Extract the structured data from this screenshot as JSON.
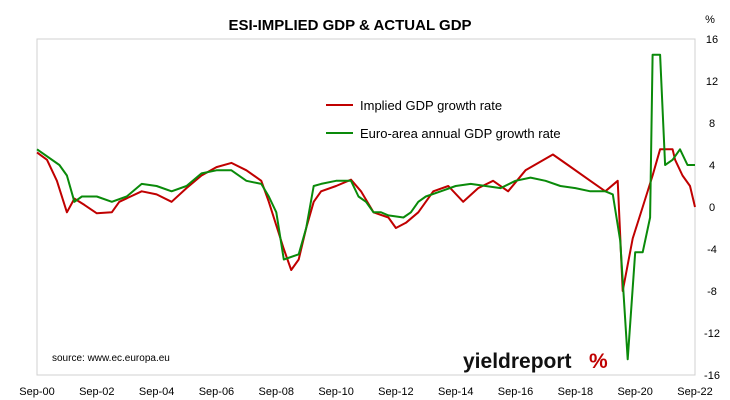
{
  "chart_data": {
    "type": "line",
    "title": "ESI-IMPLIED GDP & ACTUAL GDP",
    "y_unit": "%",
    "ylim": [
      -16,
      16
    ],
    "y_ticks": [
      16,
      12,
      8,
      4,
      0,
      -4,
      -8,
      -12,
      -16
    ],
    "x_ticks": [
      "Sep-00",
      "Sep-02",
      "Sep-04",
      "Sep-06",
      "Sep-08",
      "Sep-10",
      "Sep-12",
      "Sep-14",
      "Sep-16",
      "Sep-18",
      "Sep-20",
      "Sep-22"
    ],
    "xlim": [
      "2000-09",
      "2022-09"
    ],
    "grid": false,
    "legend_placement": "upper-center",
    "series": [
      {
        "name": "Implied GDP growth rate",
        "color": "#c00000",
        "points": [
          [
            "2000-09",
            5.2
          ],
          [
            "2001-01",
            4.5
          ],
          [
            "2001-05",
            2.5
          ],
          [
            "2001-09",
            -0.5
          ],
          [
            "2001-12",
            0.8
          ],
          [
            "2002-04",
            0.2
          ],
          [
            "2002-09",
            -0.6
          ],
          [
            "2003-03",
            -0.5
          ],
          [
            "2003-06",
            0.5
          ],
          [
            "2004-03",
            1.5
          ],
          [
            "2004-09",
            1.2
          ],
          [
            "2005-03",
            0.5
          ],
          [
            "2005-09",
            1.8
          ],
          [
            "2006-03",
            3.0
          ],
          [
            "2006-09",
            3.8
          ],
          [
            "2007-03",
            4.2
          ],
          [
            "2007-09",
            3.5
          ],
          [
            "2008-03",
            2.5
          ],
          [
            "2008-06",
            0.5
          ],
          [
            "2008-12",
            -4.0
          ],
          [
            "2009-03",
            -6.0
          ],
          [
            "2009-06",
            -5.0
          ],
          [
            "2009-09",
            -2.0
          ],
          [
            "2009-12",
            0.5
          ],
          [
            "2010-03",
            1.5
          ],
          [
            "2010-09",
            2.0
          ],
          [
            "2011-03",
            2.6
          ],
          [
            "2011-07",
            1.5
          ],
          [
            "2011-12",
            -0.5
          ],
          [
            "2012-06",
            -1.0
          ],
          [
            "2012-09",
            -2.0
          ],
          [
            "2013-01",
            -1.5
          ],
          [
            "2013-06",
            -0.5
          ],
          [
            "2013-12",
            1.5
          ],
          [
            "2014-06",
            2.0
          ],
          [
            "2014-12",
            0.5
          ],
          [
            "2015-06",
            1.8
          ],
          [
            "2015-12",
            2.5
          ],
          [
            "2016-06",
            1.5
          ],
          [
            "2017-01",
            3.5
          ],
          [
            "2017-12",
            5.0
          ],
          [
            "2018-06",
            4.0
          ],
          [
            "2019-03",
            2.5
          ],
          [
            "2019-09",
            1.5
          ],
          [
            "2020-02",
            2.5
          ],
          [
            "2020-04",
            -8.0
          ],
          [
            "2020-08",
            -3.0
          ],
          [
            "2020-12",
            0.0
          ],
          [
            "2021-04",
            3.0
          ],
          [
            "2021-07",
            5.5
          ],
          [
            "2021-12",
            5.5
          ],
          [
            "2022-01",
            4.5
          ],
          [
            "2022-04",
            3.0
          ],
          [
            "2022-07",
            2.0
          ],
          [
            "2022-09",
            0.0
          ]
        ]
      },
      {
        "name": "Euro-area annual GDP growth rate",
        "color": "#0a8a0a",
        "points": [
          [
            "2000-09",
            5.5
          ],
          [
            "2001-06",
            4.0
          ],
          [
            "2001-09",
            3.0
          ],
          [
            "2001-12",
            0.5
          ],
          [
            "2002-03",
            1.0
          ],
          [
            "2002-09",
            1.0
          ],
          [
            "2003-03",
            0.5
          ],
          [
            "2003-09",
            1.0
          ],
          [
            "2004-03",
            2.2
          ],
          [
            "2004-09",
            2.0
          ],
          [
            "2005-03",
            1.5
          ],
          [
            "2005-09",
            2.0
          ],
          [
            "2006-03",
            3.2
          ],
          [
            "2006-09",
            3.5
          ],
          [
            "2007-03",
            3.5
          ],
          [
            "2007-09",
            2.5
          ],
          [
            "2008-03",
            2.2
          ],
          [
            "2008-06",
            1.0
          ],
          [
            "2008-09",
            -0.5
          ],
          [
            "2008-12",
            -5.0
          ],
          [
            "2009-06",
            -4.5
          ],
          [
            "2009-09",
            -2.0
          ],
          [
            "2009-12",
            2.0
          ],
          [
            "2010-03",
            2.2
          ],
          [
            "2010-09",
            2.5
          ],
          [
            "2011-03",
            2.5
          ],
          [
            "2011-06",
            1.0
          ],
          [
            "2011-09",
            0.5
          ],
          [
            "2011-12",
            -0.5
          ],
          [
            "2012-03",
            -0.5
          ],
          [
            "2012-06",
            -0.8
          ],
          [
            "2012-12",
            -1.0
          ],
          [
            "2013-03",
            -0.5
          ],
          [
            "2013-06",
            0.5
          ],
          [
            "2013-09",
            1.0
          ],
          [
            "2014-03",
            1.5
          ],
          [
            "2014-09",
            2.0
          ],
          [
            "2015-03",
            2.2
          ],
          [
            "2015-09",
            2.0
          ],
          [
            "2016-03",
            1.8
          ],
          [
            "2016-09",
            2.5
          ],
          [
            "2017-03",
            2.8
          ],
          [
            "2017-09",
            2.5
          ],
          [
            "2018-03",
            2.0
          ],
          [
            "2018-09",
            1.8
          ],
          [
            "2019-03",
            1.5
          ],
          [
            "2019-09",
            1.5
          ],
          [
            "2019-12",
            1.2
          ],
          [
            "2020-03",
            -3.2
          ],
          [
            "2020-06",
            -14.5
          ],
          [
            "2020-09",
            -4.3
          ],
          [
            "2020-12",
            -4.3
          ],
          [
            "2021-03",
            -1.0
          ],
          [
            "2021-04",
            14.5
          ],
          [
            "2021-07",
            14.5
          ],
          [
            "2021-09",
            4.0
          ],
          [
            "2021-12",
            4.5
          ],
          [
            "2022-03",
            5.5
          ],
          [
            "2022-06",
            4.0
          ],
          [
            "2022-09",
            4.0
          ]
        ]
      }
    ]
  },
  "source_text": "source: www.ec.europa.eu",
  "brand": {
    "text": "yieldreport",
    "symbol": "%",
    "symbol_colors": [
      "#0a8a0a",
      "#c00000"
    ]
  }
}
